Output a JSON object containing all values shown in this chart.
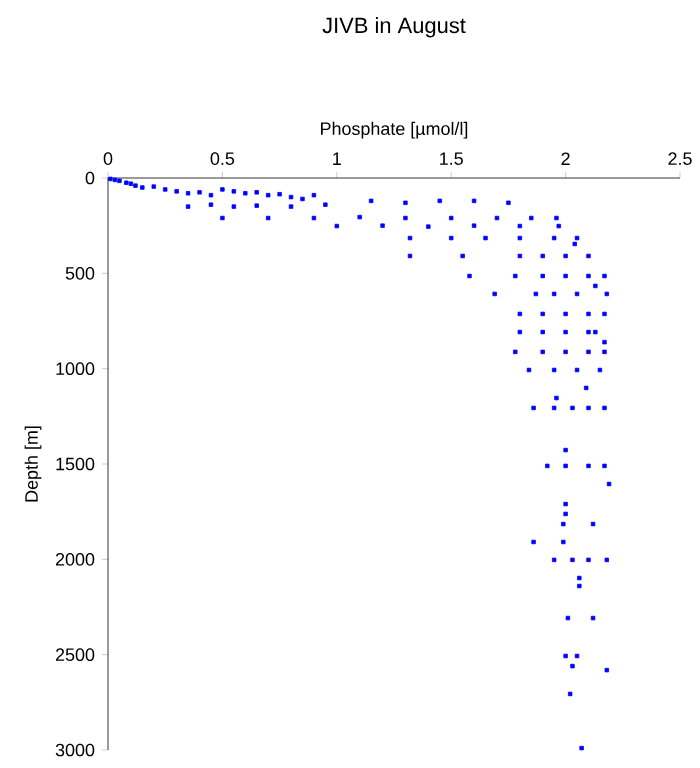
{
  "chart_data": {
    "type": "scatter",
    "title": "JIVB in August",
    "xlabel": "Phosphate [µmol/l]",
    "ylabel": "Depth [m]",
    "xlim": [
      0,
      2.5
    ],
    "ylim": [
      3000,
      0
    ],
    "xticks": [
      0,
      0.5,
      1,
      1.5,
      2,
      2.5
    ],
    "yticks": [
      0,
      500,
      1000,
      1500,
      2000,
      2500,
      3000
    ],
    "marker": "square",
    "grid": false,
    "series": [
      {
        "color": "#0000ff",
        "x": [
          0.01,
          0.03,
          0.05,
          0.08,
          0.1,
          0.12,
          0.15,
          0.2,
          0.25,
          0.3,
          0.35,
          0.4,
          0.45,
          0.5,
          0.55,
          0.6,
          0.65,
          0.7,
          0.75,
          0.8,
          0.85,
          0.9,
          0.35,
          0.45,
          0.55,
          0.65,
          0.8,
          0.95,
          1.15,
          1.3,
          1.45,
          1.6,
          1.75,
          0.5,
          0.7,
          0.9,
          1.1,
          1.3,
          1.5,
          1.7,
          1.85,
          1.96,
          1.0,
          1.2,
          1.4,
          1.6,
          1.8,
          1.97,
          1.32,
          1.5,
          1.65,
          1.8,
          1.95,
          2.05,
          2.04,
          1.32,
          1.55,
          1.8,
          1.9,
          2.0,
          2.1,
          1.58,
          1.78,
          1.9,
          2.0,
          2.1,
          2.17,
          2.13,
          1.69,
          1.87,
          1.95,
          2.05,
          2.18,
          1.8,
          1.9,
          2.0,
          2.1,
          2.17,
          1.8,
          1.9,
          2.0,
          2.1,
          2.13,
          2.17,
          1.78,
          1.9,
          2.0,
          2.1,
          2.17,
          1.84,
          1.95,
          2.05,
          2.15,
          2.09,
          1.96,
          1.86,
          1.95,
          2.03,
          2.1,
          2.17,
          2.0,
          1.92,
          2.0,
          2.1,
          2.17,
          2.19,
          2.0,
          2.0,
          1.99,
          2.12,
          1.86,
          1.99,
          1.95,
          2.03,
          2.1,
          2.18,
          2.06,
          2.06,
          2.01,
          2.12,
          2.0,
          2.05,
          2.03,
          2.18,
          2.02,
          2.07
        ],
        "values": [
          5,
          10,
          15,
          25,
          30,
          40,
          50,
          45,
          60,
          70,
          80,
          75,
          90,
          60,
          70,
          80,
          75,
          90,
          85,
          100,
          110,
          90,
          150,
          140,
          150,
          145,
          150,
          140,
          120,
          130,
          120,
          120,
          130,
          210,
          210,
          210,
          205,
          210,
          210,
          210,
          210,
          210,
          252,
          250,
          255,
          250,
          252,
          252,
          315,
          315,
          315,
          315,
          315,
          315,
          346,
          409,
          409,
          409,
          409,
          409,
          409,
          514,
          514,
          514,
          514,
          514,
          514,
          566,
          608,
          608,
          608,
          608,
          608,
          713,
          713,
          713,
          713,
          713,
          808,
          808,
          808,
          808,
          808,
          861,
          912,
          912,
          912,
          912,
          912,
          1007,
          1007,
          1007,
          1007,
          1101,
          1154,
          1206,
          1206,
          1206,
          1206,
          1206,
          1427,
          1510,
          1510,
          1510,
          1510,
          1605,
          1710,
          1762,
          1815,
          1815,
          1909,
          1909,
          2003,
          2003,
          2003,
          2003,
          2098,
          2140,
          2308,
          2308,
          2507,
          2507,
          2560,
          2581,
          2706,
          2990
        ]
      }
    ]
  }
}
